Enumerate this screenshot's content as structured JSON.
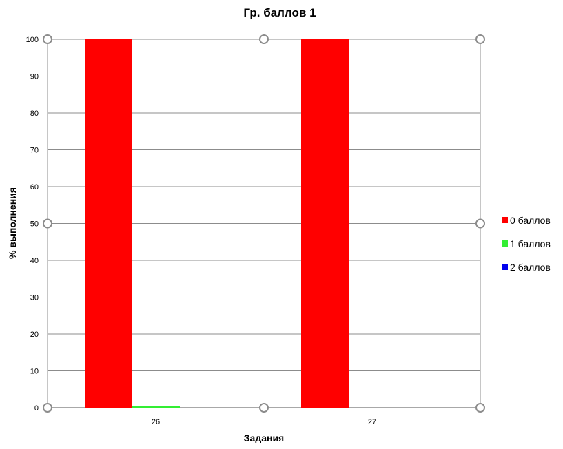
{
  "chart_data": {
    "type": "bar",
    "title": "Гр. баллов 1",
    "xlabel": "Задания",
    "ylabel": "% выполнения",
    "categories": [
      "26",
      "27"
    ],
    "series": [
      {
        "name": "0 баллов",
        "color": "#ff0000",
        "values": [
          100,
          100
        ]
      },
      {
        "name": "1 баллов",
        "color": "#33ee33",
        "values": [
          0.5,
          0
        ]
      },
      {
        "name": "2 баллов",
        "color": "#0000ee",
        "values": [
          0,
          0
        ]
      }
    ],
    "ylim": [
      0,
      100
    ],
    "yticks": [
      "0",
      "10",
      "20",
      "30",
      "40",
      "50",
      "60",
      "70",
      "80",
      "90",
      "100"
    ],
    "grid": true,
    "legend_position": "right",
    "selected": true,
    "colors": {
      "gridline": "#8c8c8c",
      "selection_handle": "#8c8c8c"
    }
  }
}
